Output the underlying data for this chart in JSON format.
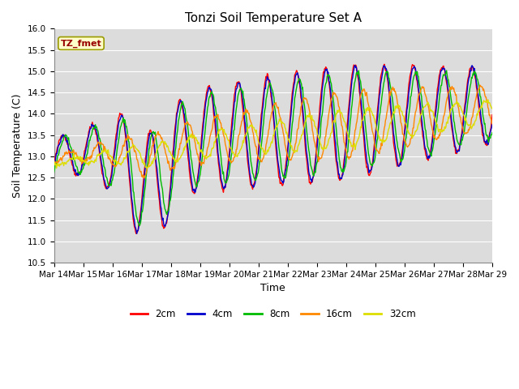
{
  "title": "Tonzi Soil Temperature Set A",
  "xlabel": "Time",
  "ylabel": "Soil Temperature (C)",
  "annotation": "TZ_fmet",
  "ylim": [
    10.5,
    16.0
  ],
  "yticks": [
    10.5,
    11.0,
    11.5,
    12.0,
    12.5,
    13.0,
    13.5,
    14.0,
    14.5,
    15.0,
    15.5,
    16.0
  ],
  "xtick_labels": [
    "Mar 14",
    "Mar 15",
    "Mar 16",
    "Mar 17",
    "Mar 18",
    "Mar 19",
    "Mar 20",
    "Mar 21",
    "Mar 22",
    "Mar 23",
    "Mar 24",
    "Mar 25",
    "Mar 26",
    "Mar 27",
    "Mar 28",
    "Mar 29"
  ],
  "series_colors": {
    "2cm": "#ff0000",
    "4cm": "#0000cc",
    "8cm": "#00bb00",
    "16cm": "#ff8800",
    "32cm": "#dddd00"
  },
  "bg_color": "#dcdcdc",
  "grid_color": "#ffffff",
  "fig_color": "#ffffff",
  "title_fontsize": 11,
  "label_fontsize": 9,
  "tick_fontsize": 7.5,
  "n_points": 720,
  "days": 15
}
